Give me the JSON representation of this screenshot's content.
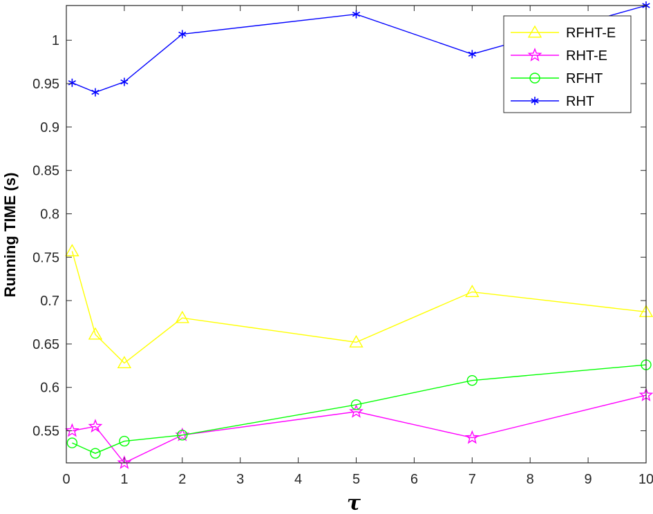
{
  "chart_data": {
    "type": "line",
    "xlabel": "τ",
    "ylabel": "Running TIME (s)",
    "xlim": [
      0,
      10
    ],
    "ylim": [
      0.513,
      1.04
    ],
    "xticks": [
      "0",
      "1",
      "2",
      "3",
      "4",
      "5",
      "6",
      "7",
      "8",
      "9",
      "10"
    ],
    "yticks": [
      "0.55",
      "0.6",
      "0.65",
      "0.7",
      "0.75",
      "0.8",
      "0.85",
      "0.9",
      "0.95",
      "1"
    ],
    "grid": false,
    "legend_position": "top-right",
    "x": [
      0.1,
      0.5,
      1,
      2,
      5,
      7,
      10
    ],
    "series": [
      {
        "name": "RFHT-E",
        "color": "#ffff00",
        "marker": "triangle",
        "values": [
          0.757,
          0.661,
          0.628,
          0.68,
          0.652,
          0.71,
          0.687
        ]
      },
      {
        "name": "RHT-E",
        "color": "#ff00ff",
        "marker": "pentagram",
        "values": [
          0.55,
          0.555,
          0.513,
          0.545,
          0.572,
          0.542,
          0.591
        ]
      },
      {
        "name": "RFHT",
        "color": "#00ff00",
        "marker": "circle",
        "values": [
          0.536,
          0.524,
          0.538,
          0.545,
          0.58,
          0.608,
          0.626
        ]
      },
      {
        "name": "RHT",
        "color": "#0000ff",
        "marker": "asterisk",
        "values": [
          0.951,
          0.94,
          0.952,
          1.007,
          1.03,
          0.984,
          1.04
        ]
      }
    ]
  }
}
